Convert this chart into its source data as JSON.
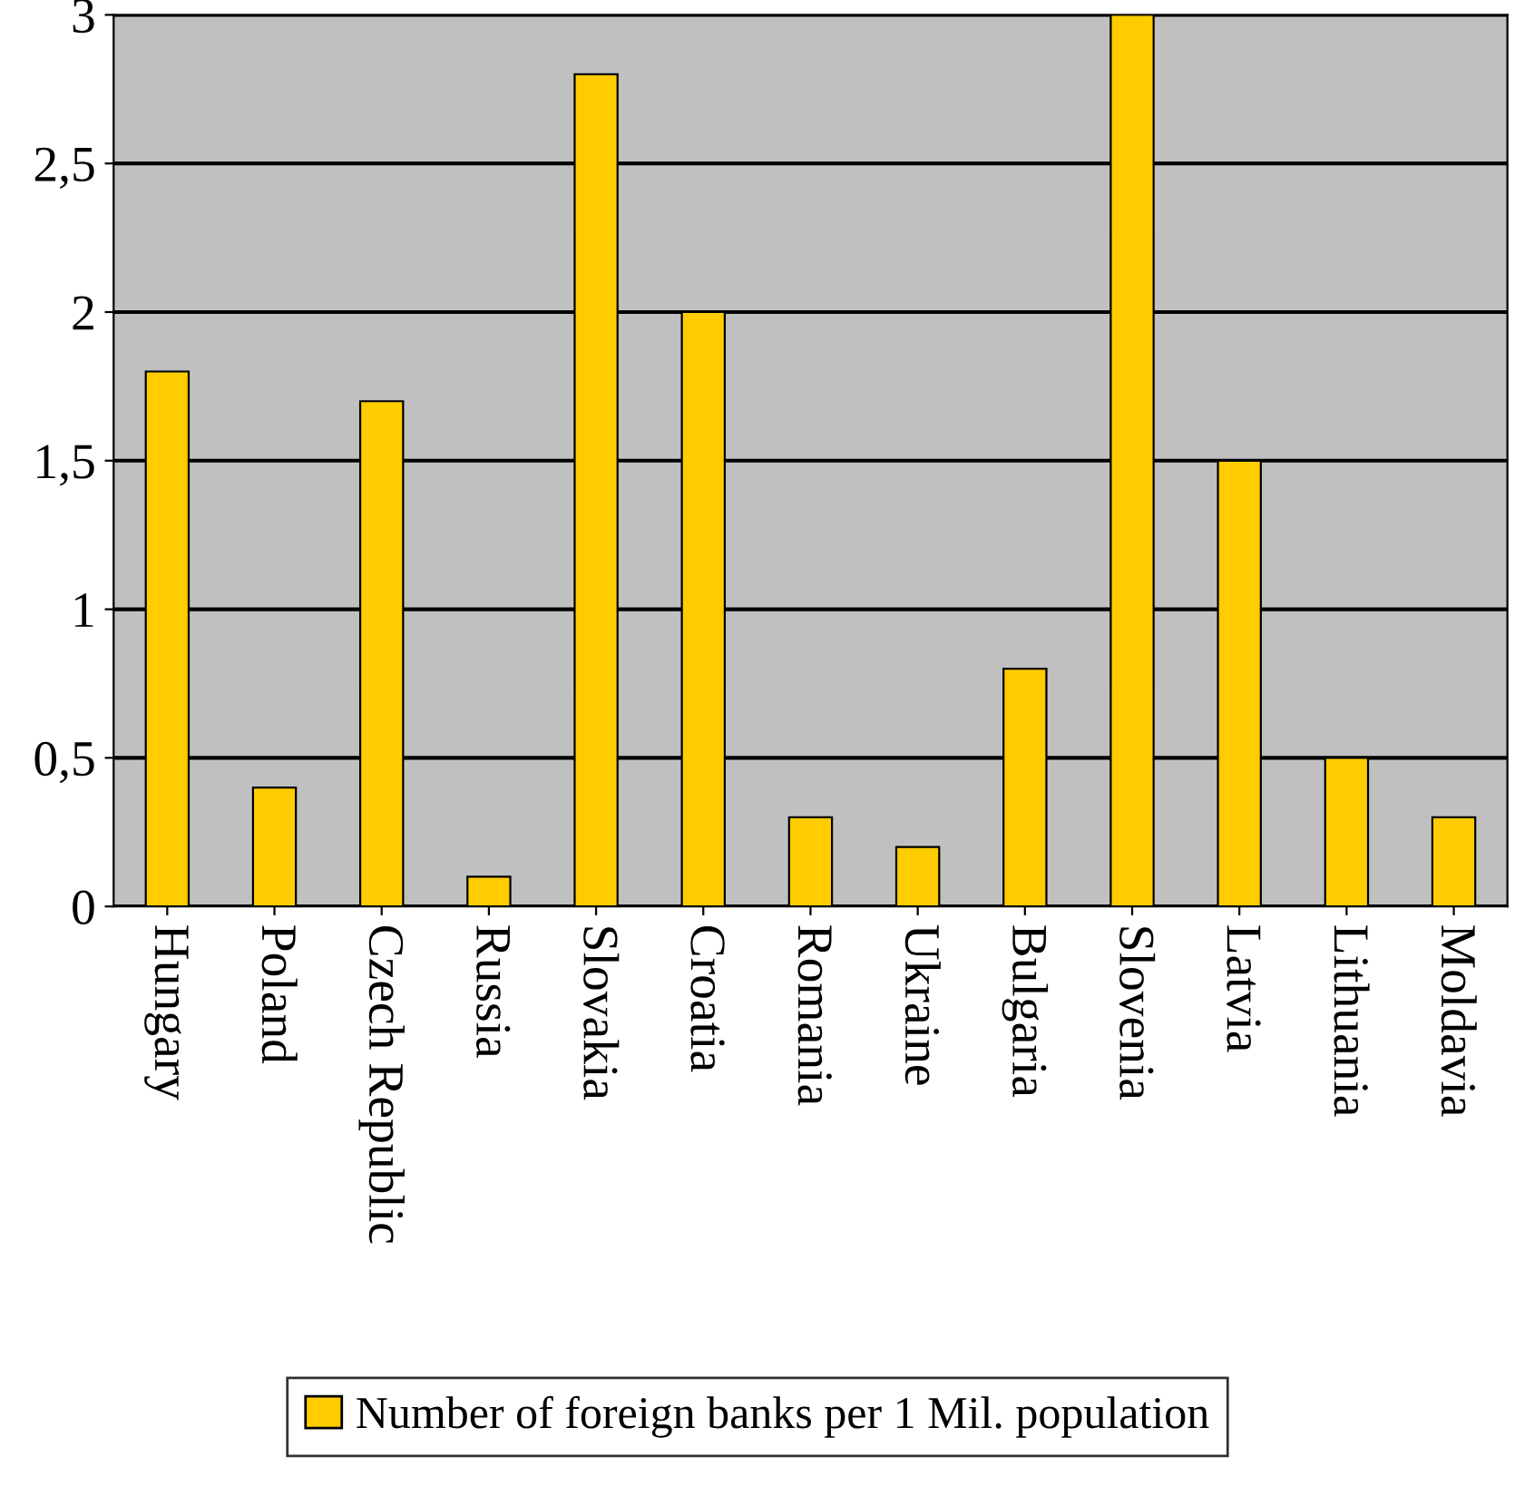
{
  "chart_data": {
    "type": "bar",
    "categories": [
      "Hungary",
      "Poland",
      "Czech Republic",
      "Russia",
      "Slovakia",
      "Croatia",
      "Romania",
      "Ukraine",
      "Bulgaria",
      "Slovenia",
      "Latvia",
      "Lithuania",
      "Moldavia"
    ],
    "series": [
      {
        "name": "Number of foreign banks per 1 Mil. population",
        "color": "#ffcc00",
        "values": [
          1.8,
          0.4,
          1.7,
          0.1,
          2.8,
          2.0,
          0.3,
          0.2,
          0.8,
          3.0,
          1.5,
          0.5,
          0.3
        ]
      }
    ],
    "ylim": [
      0,
      3
    ],
    "yticks": [
      0,
      {
        "value": 0.5,
        "label": "0,5"
      },
      1,
      {
        "value": 1.5,
        "label": "1,5"
      },
      2,
      {
        "value": 2.5,
        "label": "2,5"
      },
      3
    ],
    "grid": "y",
    "legend": "bottom"
  }
}
